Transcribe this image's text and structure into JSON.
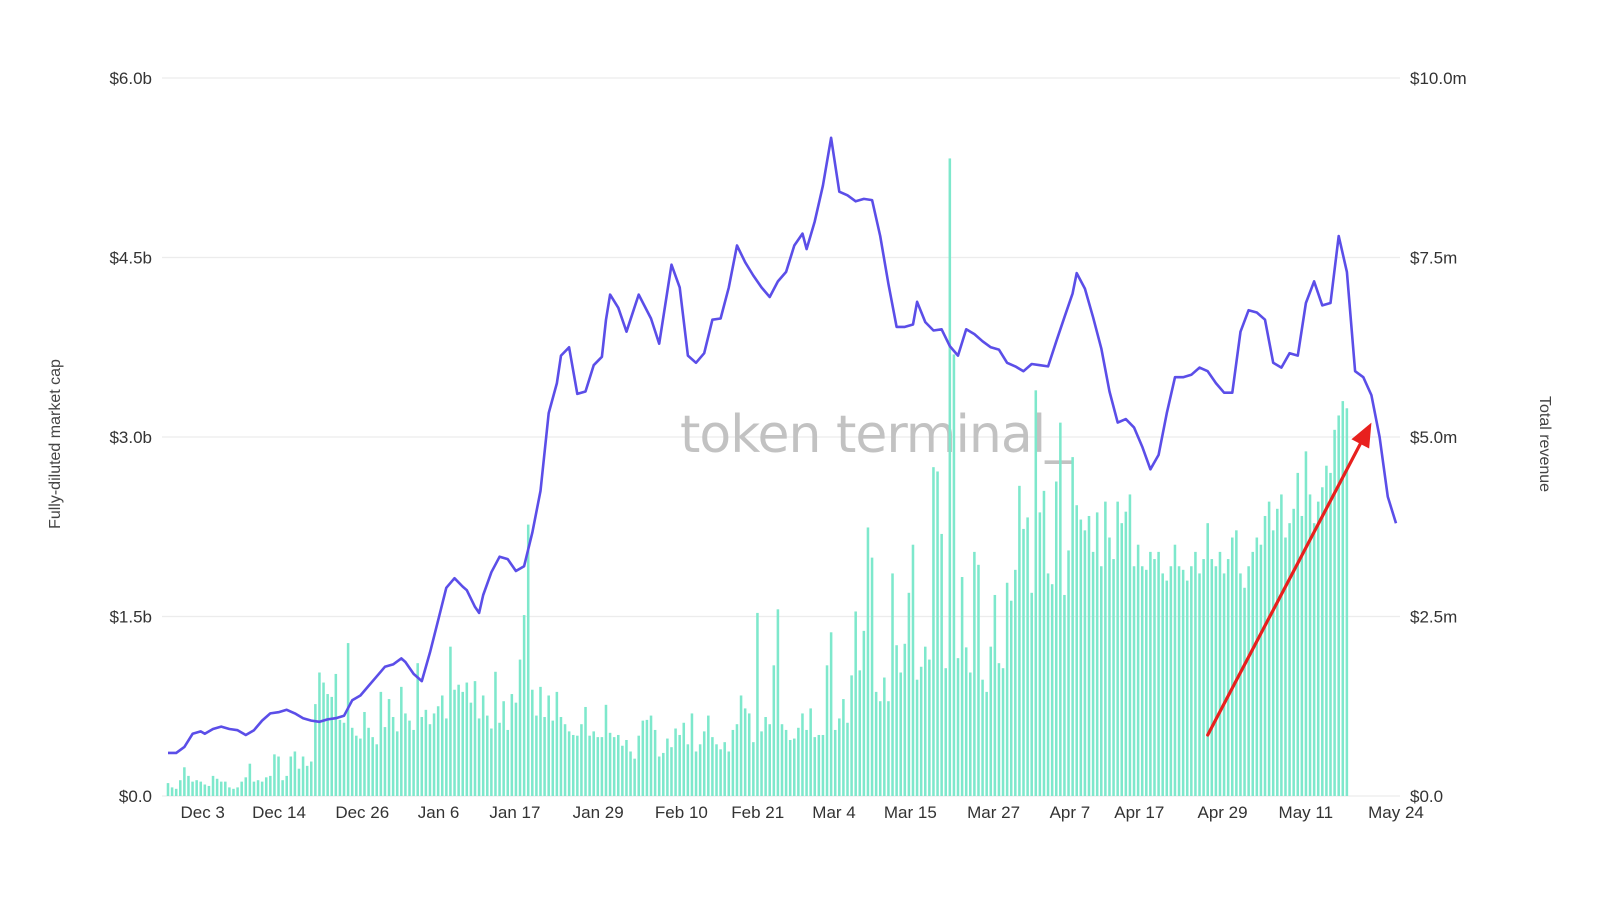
{
  "watermark": "token terminal_",
  "chart_data": {
    "type": "bar+line",
    "title": "",
    "xlabel": "",
    "y_left_label": "Fully-diluted market cap",
    "y_right_label": "Total revenue",
    "y_left_ticks": [
      "$0.0",
      "$1.5b",
      "$3.0b",
      "$4.5b",
      "$6.0b"
    ],
    "y_right_ticks": [
      "$0.0",
      "$2.5m",
      "$5.0m",
      "$7.5m",
      "$10.0m"
    ],
    "y_left_range_b": [
      0,
      6
    ],
    "y_right_range_m": [
      0,
      10
    ],
    "x_tick_labels": [
      "Dec 3",
      "Dec 14",
      "Dec 26",
      "Jan 6",
      "Jan 17",
      "Jan 29",
      "Feb 10",
      "Feb 21",
      "Mar 4",
      "Mar 15",
      "Mar 27",
      "Apr 7",
      "Apr 17",
      "Apr 29",
      "May 11",
      "May 24"
    ],
    "x_tick_day_index": [
      5,
      16,
      28,
      39,
      50,
      62,
      74,
      85,
      96,
      107,
      119,
      130,
      140,
      152,
      164,
      177
    ],
    "grid": true,
    "colors": {
      "line": "#5b4ee8",
      "bars": "#7ee8cc",
      "arrow": "#e8201e",
      "grid": "#ececec"
    },
    "series": [
      {
        "name": "Fully-diluted market cap",
        "kind": "line",
        "axis": "left",
        "unit": "billions USD",
        "points": [
          [
            0,
            0.36
          ],
          [
            2,
            0.36
          ],
          [
            4,
            0.41
          ],
          [
            6,
            0.52
          ],
          [
            8,
            0.54
          ],
          [
            9,
            0.52
          ],
          [
            11,
            0.56
          ],
          [
            13,
            0.58
          ],
          [
            15,
            0.56
          ],
          [
            17,
            0.55
          ],
          [
            19,
            0.51
          ],
          [
            21,
            0.55
          ],
          [
            23,
            0.63
          ],
          [
            25,
            0.69
          ],
          [
            27,
            0.7
          ],
          [
            29,
            0.72
          ],
          [
            31,
            0.69
          ],
          [
            33,
            0.65
          ],
          [
            35,
            0.63
          ],
          [
            37,
            0.62
          ],
          [
            39,
            0.64
          ],
          [
            41,
            0.65
          ],
          [
            43,
            0.67
          ],
          [
            45,
            0.8
          ],
          [
            47,
            0.84
          ],
          [
            49,
            0.92
          ],
          [
            51,
            1.0
          ],
          [
            53,
            1.08
          ],
          [
            55,
            1.1
          ],
          [
            57,
            1.15
          ],
          [
            58,
            1.12
          ],
          [
            60,
            1.02
          ],
          [
            62,
            0.96
          ],
          [
            64,
            1.2
          ],
          [
            66,
            1.47
          ],
          [
            68,
            1.74
          ],
          [
            70,
            1.82
          ],
          [
            72,
            1.75
          ],
          [
            73,
            1.72
          ],
          [
            75,
            1.58
          ],
          [
            76,
            1.53
          ],
          [
            77,
            1.68
          ],
          [
            79,
            1.87
          ],
          [
            81,
            2.0
          ],
          [
            83,
            1.98
          ],
          [
            85,
            1.88
          ],
          [
            87,
            1.92
          ],
          [
            89,
            2.2
          ],
          [
            91,
            2.55
          ],
          [
            93,
            3.2
          ],
          [
            95,
            3.45
          ],
          [
            96,
            3.68
          ],
          [
            98,
            3.75
          ],
          [
            100,
            3.36
          ],
          [
            102,
            3.38
          ],
          [
            104,
            3.6
          ],
          [
            106,
            3.67
          ],
          [
            107,
            3.98
          ],
          [
            108,
            4.19
          ],
          [
            110,
            4.08
          ],
          [
            112,
            3.88
          ],
          [
            115,
            4.19
          ],
          [
            118,
            3.99
          ],
          [
            120,
            3.78
          ],
          [
            122,
            4.22
          ],
          [
            123,
            4.44
          ],
          [
            125,
            4.25
          ],
          [
            127,
            3.68
          ],
          [
            129,
            3.62
          ],
          [
            131,
            3.7
          ],
          [
            133,
            3.98
          ],
          [
            135,
            3.99
          ],
          [
            137,
            4.25
          ],
          [
            139,
            4.6
          ],
          [
            141,
            4.46
          ],
          [
            143,
            4.35
          ],
          [
            145,
            4.25
          ],
          [
            147,
            4.17
          ],
          [
            149,
            4.3
          ],
          [
            151,
            4.38
          ],
          [
            153,
            4.6
          ],
          [
            155,
            4.7
          ],
          [
            156,
            4.57
          ],
          [
            158,
            4.8
          ],
          [
            160,
            5.1
          ],
          [
            162,
            5.5
          ],
          [
            164,
            5.05
          ],
          [
            166,
            5.02
          ],
          [
            168,
            4.97
          ],
          [
            170,
            4.99
          ],
          [
            172,
            4.98
          ],
          [
            174,
            4.68
          ],
          [
            176,
            4.28
          ],
          [
            178,
            3.92
          ],
          [
            180,
            3.92
          ],
          [
            182,
            3.94
          ],
          [
            183,
            4.13
          ],
          [
            185,
            3.96
          ],
          [
            187,
            3.89
          ],
          [
            189,
            3.9
          ],
          [
            191,
            3.76
          ],
          [
            193,
            3.68
          ],
          [
            195,
            3.9
          ],
          [
            197,
            3.86
          ],
          [
            199,
            3.8
          ],
          [
            201,
            3.75
          ],
          [
            203,
            3.73
          ],
          [
            205,
            3.62
          ],
          [
            207,
            3.59
          ],
          [
            209,
            3.55
          ],
          [
            211,
            3.61
          ],
          [
            213,
            3.6
          ],
          [
            215,
            3.59
          ],
          [
            217,
            3.8
          ],
          [
            219,
            4.0
          ],
          [
            221,
            4.2
          ],
          [
            222,
            4.37
          ],
          [
            224,
            4.24
          ],
          [
            226,
            4.0
          ],
          [
            228,
            3.74
          ],
          [
            230,
            3.38
          ],
          [
            232,
            3.12
          ],
          [
            234,
            3.15
          ],
          [
            236,
            3.08
          ],
          [
            238,
            2.92
          ],
          [
            240,
            2.73
          ],
          [
            242,
            2.85
          ],
          [
            244,
            3.2
          ],
          [
            246,
            3.5
          ],
          [
            248,
            3.5
          ],
          [
            250,
            3.52
          ],
          [
            252,
            3.58
          ],
          [
            254,
            3.55
          ],
          [
            256,
            3.45
          ],
          [
            258,
            3.37
          ],
          [
            260,
            3.37
          ],
          [
            262,
            3.88
          ],
          [
            264,
            4.06
          ],
          [
            266,
            4.04
          ],
          [
            268,
            3.98
          ],
          [
            270,
            3.62
          ],
          [
            272,
            3.58
          ],
          [
            274,
            3.7
          ],
          [
            276,
            3.68
          ],
          [
            278,
            4.12
          ],
          [
            280,
            4.3
          ],
          [
            282,
            4.1
          ],
          [
            284,
            4.12
          ],
          [
            286,
            4.68
          ],
          [
            288,
            4.38
          ],
          [
            290,
            3.55
          ],
          [
            292,
            3.5
          ],
          [
            294,
            3.35
          ],
          [
            296,
            3.0
          ],
          [
            298,
            2.5
          ],
          [
            300,
            2.28
          ]
        ]
      },
      {
        "name": "Total revenue",
        "kind": "bar",
        "axis": "right",
        "unit": "millions USD",
        "values": [
          0.18,
          0.12,
          0.1,
          0.22,
          0.4,
          0.28,
          0.2,
          0.22,
          0.2,
          0.16,
          0.14,
          0.28,
          0.24,
          0.2,
          0.2,
          0.12,
          0.1,
          0.12,
          0.2,
          0.26,
          0.45,
          0.2,
          0.22,
          0.2,
          0.26,
          0.28,
          0.58,
          0.55,
          0.22,
          0.28,
          0.55,
          0.62,
          0.38,
          0.55,
          0.42,
          0.48,
          1.28,
          1.72,
          1.58,
          1.42,
          1.38,
          1.7,
          1.06,
          1.02,
          2.13,
          0.95,
          0.84,
          0.8,
          1.17,
          0.95,
          0.82,
          0.72,
          1.45,
          0.96,
          1.35,
          1.1,
          0.9,
          1.52,
          1.15,
          1.05,
          0.92,
          1.85,
          1.1,
          1.2,
          1.0,
          1.15,
          1.25,
          1.4,
          1.08,
          2.08,
          1.48,
          1.55,
          1.45,
          1.58,
          1.3,
          1.6,
          1.08,
          1.4,
          1.12,
          0.94,
          1.73,
          1.02,
          1.32,
          0.92,
          1.42,
          1.3,
          1.9,
          2.52,
          3.78,
          1.48,
          1.12,
          1.52,
          1.1,
          1.4,
          1.05,
          1.45,
          1.1,
          1.0,
          0.9,
          0.85,
          0.84,
          1.0,
          1.24,
          0.84,
          0.9,
          0.82,
          0.82,
          1.27,
          0.88,
          0.82,
          0.85,
          0.7,
          0.78,
          0.62,
          0.52,
          0.84,
          1.05,
          1.06,
          1.12,
          0.92,
          0.55,
          0.6,
          0.8,
          0.68,
          0.94,
          0.85,
          1.02,
          0.72,
          1.15,
          0.62,
          0.72,
          0.9,
          1.12,
          0.82,
          0.72,
          0.65,
          0.75,
          0.62,
          0.92,
          1.0,
          1.4,
          1.22,
          1.15,
          0.75,
          2.55,
          0.9,
          1.1,
          1.0,
          1.82,
          2.6,
          1.0,
          0.92,
          0.78,
          0.8,
          0.95,
          1.15,
          0.92,
          1.22,
          0.82,
          0.85,
          0.85,
          1.82,
          2.28,
          0.92,
          1.08,
          1.35,
          1.02,
          1.68,
          2.57,
          1.75,
          2.3,
          3.74,
          3.32,
          1.45,
          1.32,
          1.65,
          1.32,
          3.1,
          2.1,
          1.72,
          2.12,
          2.83,
          3.5,
          1.62,
          1.8,
          2.08,
          1.9,
          4.58,
          4.52,
          3.65,
          1.78,
          8.88,
          6.15,
          1.92,
          3.05,
          2.07,
          1.72,
          3.4,
          3.22,
          1.62,
          1.45,
          2.08,
          2.8,
          1.85,
          1.78,
          2.97,
          2.72,
          3.15,
          4.32,
          3.72,
          3.88,
          2.83,
          5.65,
          3.95,
          4.25,
          3.1,
          2.95,
          4.38,
          5.2,
          2.8,
          3.42,
          4.72,
          4.05,
          3.85,
          3.7,
          3.9,
          3.4,
          3.95,
          3.2,
          4.1,
          3.6,
          3.3,
          4.1,
          3.8,
          3.96,
          4.2,
          3.2,
          3.5,
          3.2,
          3.15,
          3.4,
          3.3,
          3.4,
          3.1,
          3.0,
          3.2,
          3.5,
          3.2,
          3.15,
          3.0,
          3.2,
          3.4,
          3.1,
          3.3,
          3.8,
          3.3,
          3.2,
          3.4,
          3.1,
          3.3,
          3.6,
          3.7,
          3.1,
          2.9,
          3.2,
          3.4,
          3.6,
          3.5,
          3.9,
          4.1,
          3.7,
          4.0,
          4.2,
          3.6,
          3.8,
          4.0,
          4.5,
          3.9,
          4.8,
          4.2,
          3.8,
          4.1,
          4.3,
          4.6,
          4.5,
          5.1,
          5.3,
          5.5,
          5.4
        ]
      }
    ],
    "annotation": {
      "type": "arrow",
      "color": "#e8201e",
      "from_day": 254,
      "from_revenue_m": 0.85,
      "to_day": 294,
      "to_revenue_m": 5.2
    }
  }
}
